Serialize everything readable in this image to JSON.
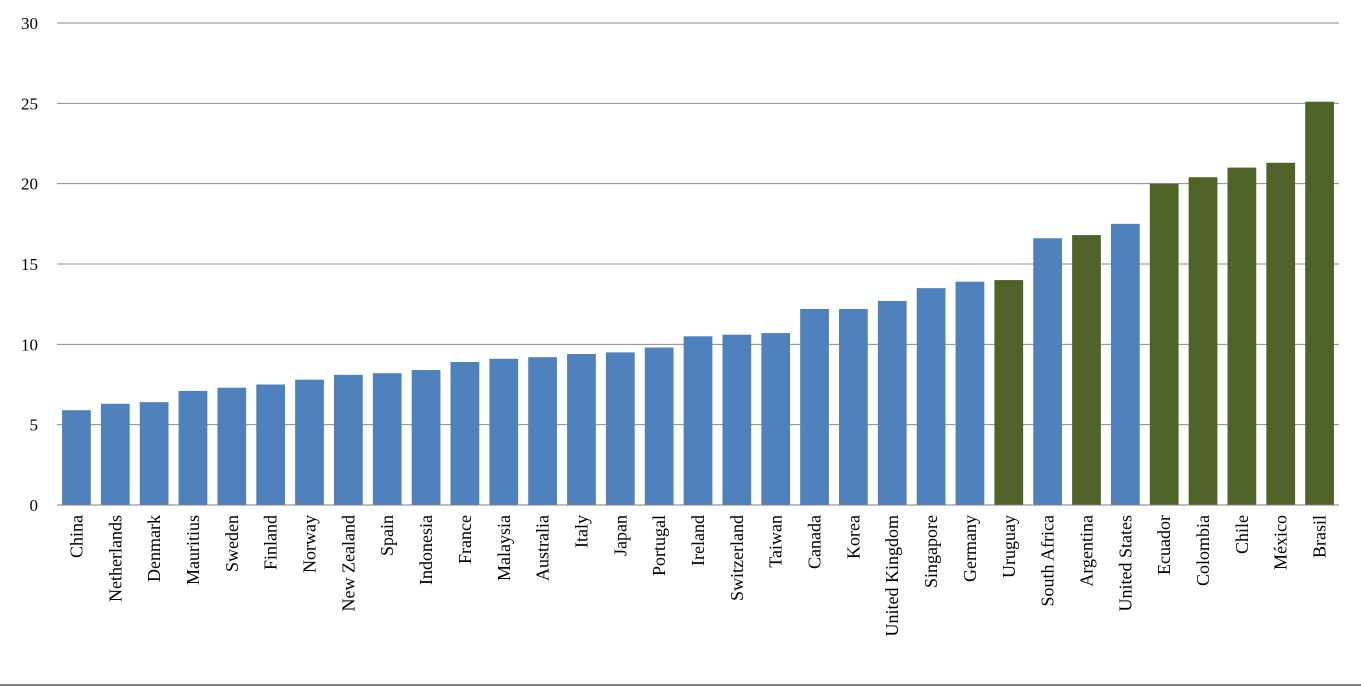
{
  "chart_data": {
    "type": "bar",
    "categories": [
      "China",
      "Netherlands",
      "Denmark",
      "Mauritius",
      "Sweden",
      "Finland",
      "Norway",
      "New Zealand",
      "Spain",
      "Indonesia",
      "France",
      "Malaysia",
      "Australia",
      "Italy",
      "Japan",
      "Portugal",
      "Ireland",
      "Switzerland",
      "Taiwan",
      "Canada",
      "Korea",
      "United Kingdom",
      "Singapore",
      "Germany",
      "Uruguay",
      "South Africa",
      "Argentina",
      "United States",
      "Ecuador",
      "Colombia",
      "Chile",
      "México",
      "Brasil"
    ],
    "values": [
      5.9,
      6.3,
      6.4,
      7.1,
      7.3,
      7.5,
      7.8,
      8.1,
      8.2,
      8.4,
      8.9,
      9.1,
      9.2,
      9.4,
      9.5,
      9.8,
      10.5,
      10.6,
      10.7,
      12.2,
      12.2,
      12.7,
      13.5,
      13.9,
      14.0,
      16.6,
      16.8,
      17.5,
      20.0,
      20.4,
      21.0,
      21.3,
      25.1
    ],
    "bar_colors": [
      "#4f81bd",
      "#4f81bd",
      "#4f81bd",
      "#4f81bd",
      "#4f81bd",
      "#4f81bd",
      "#4f81bd",
      "#4f81bd",
      "#4f81bd",
      "#4f81bd",
      "#4f81bd",
      "#4f81bd",
      "#4f81bd",
      "#4f81bd",
      "#4f81bd",
      "#4f81bd",
      "#4f81bd",
      "#4f81bd",
      "#4f81bd",
      "#4f81bd",
      "#4f81bd",
      "#4f81bd",
      "#4f81bd",
      "#4f81bd",
      "#4f6228",
      "#4f81bd",
      "#4f6228",
      "#4f81bd",
      "#4f6228",
      "#4f6228",
      "#4f6228",
      "#4f6228",
      "#4f6228"
    ],
    "ylim": [
      0,
      30
    ],
    "yticks": [
      "0",
      "5",
      "10",
      "15",
      "20",
      "25",
      "30"
    ],
    "grid": true,
    "title": "",
    "xlabel": "",
    "ylabel": ""
  }
}
